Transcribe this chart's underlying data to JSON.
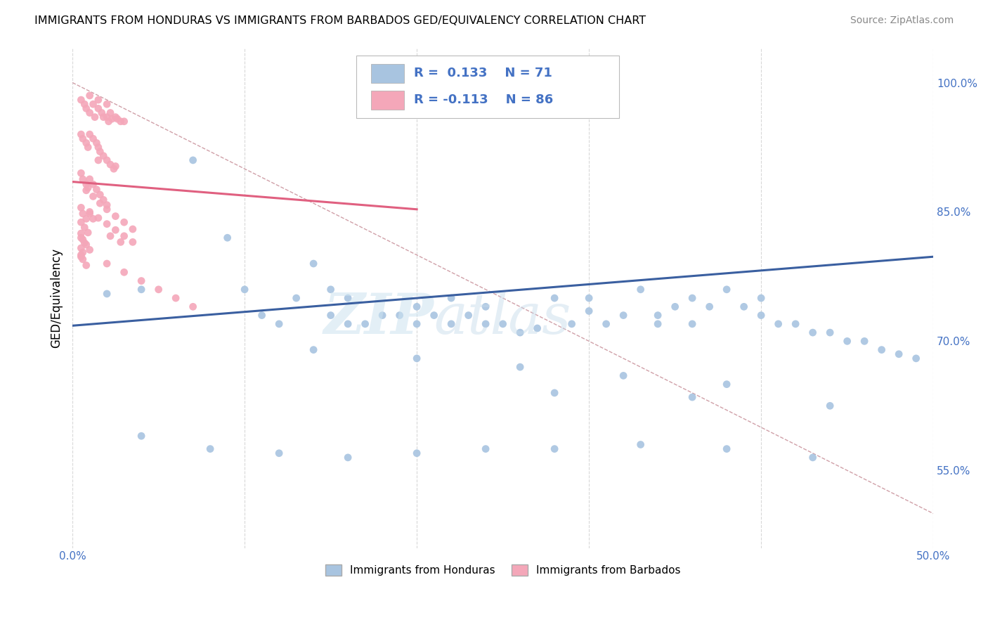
{
  "title": "IMMIGRANTS FROM HONDURAS VS IMMIGRANTS FROM BARBADOS GED/EQUIVALENCY CORRELATION CHART",
  "source": "Source: ZipAtlas.com",
  "ylabel": "GED/Equivalency",
  "ytick_labels": [
    "100.0%",
    "85.0%",
    "70.0%",
    "55.0%"
  ],
  "ytick_values": [
    1.0,
    0.85,
    0.7,
    0.55
  ],
  "xlim": [
    0.0,
    0.5
  ],
  "ylim": [
    0.46,
    1.04
  ],
  "legend_label1": "Immigrants from Honduras",
  "legend_label2": "Immigrants from Barbados",
  "color_honduras": "#a8c4e0",
  "color_barbados": "#f4a7b9",
  "color_blue_line": "#3a5fa0",
  "color_pink_line": "#e06080",
  "color_diag": "#d0a0a8",
  "honduras_x": [
    0.02,
    0.04,
    0.07,
    0.09,
    0.1,
    0.11,
    0.12,
    0.13,
    0.14,
    0.15,
    0.15,
    0.16,
    0.16,
    0.17,
    0.18,
    0.19,
    0.2,
    0.2,
    0.21,
    0.22,
    0.22,
    0.23,
    0.24,
    0.24,
    0.25,
    0.26,
    0.27,
    0.28,
    0.29,
    0.3,
    0.3,
    0.31,
    0.32,
    0.33,
    0.34,
    0.34,
    0.35,
    0.36,
    0.36,
    0.37,
    0.38,
    0.39,
    0.4,
    0.4,
    0.41,
    0.42,
    0.43,
    0.44,
    0.45,
    0.46,
    0.47,
    0.48,
    0.49,
    0.14,
    0.2,
    0.26,
    0.32,
    0.38,
    0.28,
    0.36,
    0.44,
    0.04,
    0.08,
    0.12,
    0.16,
    0.2,
    0.24,
    0.28,
    0.33,
    0.38,
    0.43
  ],
  "honduras_y": [
    0.755,
    0.76,
    0.91,
    0.82,
    0.76,
    0.73,
    0.72,
    0.75,
    0.79,
    0.76,
    0.73,
    0.72,
    0.75,
    0.72,
    0.73,
    0.73,
    0.74,
    0.72,
    0.73,
    0.75,
    0.72,
    0.73,
    0.72,
    0.74,
    0.72,
    0.71,
    0.715,
    0.75,
    0.72,
    0.75,
    0.735,
    0.72,
    0.73,
    0.76,
    0.73,
    0.72,
    0.74,
    0.75,
    0.72,
    0.74,
    0.76,
    0.74,
    0.75,
    0.73,
    0.72,
    0.72,
    0.71,
    0.71,
    0.7,
    0.7,
    0.69,
    0.685,
    0.68,
    0.69,
    0.68,
    0.67,
    0.66,
    0.65,
    0.64,
    0.635,
    0.625,
    0.59,
    0.575,
    0.57,
    0.565,
    0.57,
    0.575,
    0.575,
    0.58,
    0.575,
    0.565
  ],
  "barbados_x": [
    0.005,
    0.007,
    0.008,
    0.01,
    0.01,
    0.012,
    0.013,
    0.015,
    0.015,
    0.017,
    0.018,
    0.02,
    0.02,
    0.021,
    0.022,
    0.023,
    0.025,
    0.026,
    0.028,
    0.03,
    0.005,
    0.006,
    0.008,
    0.009,
    0.01,
    0.012,
    0.014,
    0.015,
    0.016,
    0.018,
    0.02,
    0.022,
    0.024,
    0.005,
    0.006,
    0.008,
    0.009,
    0.01,
    0.012,
    0.014,
    0.016,
    0.018,
    0.02,
    0.005,
    0.006,
    0.008,
    0.01,
    0.012,
    0.005,
    0.007,
    0.009,
    0.005,
    0.006,
    0.008,
    0.01,
    0.005,
    0.006,
    0.008,
    0.005,
    0.007,
    0.005,
    0.006,
    0.005,
    0.02,
    0.03,
    0.04,
    0.05,
    0.06,
    0.07,
    0.008,
    0.012,
    0.016,
    0.02,
    0.025,
    0.03,
    0.035,
    0.022,
    0.028,
    0.015,
    0.025,
    0.01,
    0.015,
    0.02,
    0.025,
    0.03,
    0.035
  ],
  "barbados_y": [
    0.98,
    0.975,
    0.97,
    0.985,
    0.965,
    0.975,
    0.96,
    0.98,
    0.97,
    0.965,
    0.96,
    0.975,
    0.96,
    0.955,
    0.965,
    0.958,
    0.96,
    0.958,
    0.955,
    0.955,
    0.94,
    0.935,
    0.93,
    0.925,
    0.94,
    0.935,
    0.93,
    0.925,
    0.92,
    0.915,
    0.91,
    0.905,
    0.9,
    0.895,
    0.888,
    0.882,
    0.878,
    0.888,
    0.882,
    0.876,
    0.87,
    0.864,
    0.858,
    0.855,
    0.848,
    0.842,
    0.848,
    0.842,
    0.838,
    0.832,
    0.826,
    0.825,
    0.818,
    0.812,
    0.806,
    0.8,
    0.795,
    0.788,
    0.82,
    0.814,
    0.808,
    0.803,
    0.798,
    0.79,
    0.78,
    0.77,
    0.76,
    0.75,
    0.74,
    0.875,
    0.868,
    0.86,
    0.853,
    0.845,
    0.838,
    0.83,
    0.822,
    0.815,
    0.91,
    0.903,
    0.85,
    0.843,
    0.836,
    0.829,
    0.822,
    0.815
  ],
  "honduras_line_x": [
    0.0,
    0.5
  ],
  "honduras_line_y": [
    0.718,
    0.798
  ],
  "barbados_line_x": [
    0.0,
    0.2
  ],
  "barbados_line_y": [
    0.885,
    0.853
  ],
  "diag_line_x": [
    0.0,
    0.5
  ],
  "diag_line_y": [
    1.0,
    0.5
  ]
}
